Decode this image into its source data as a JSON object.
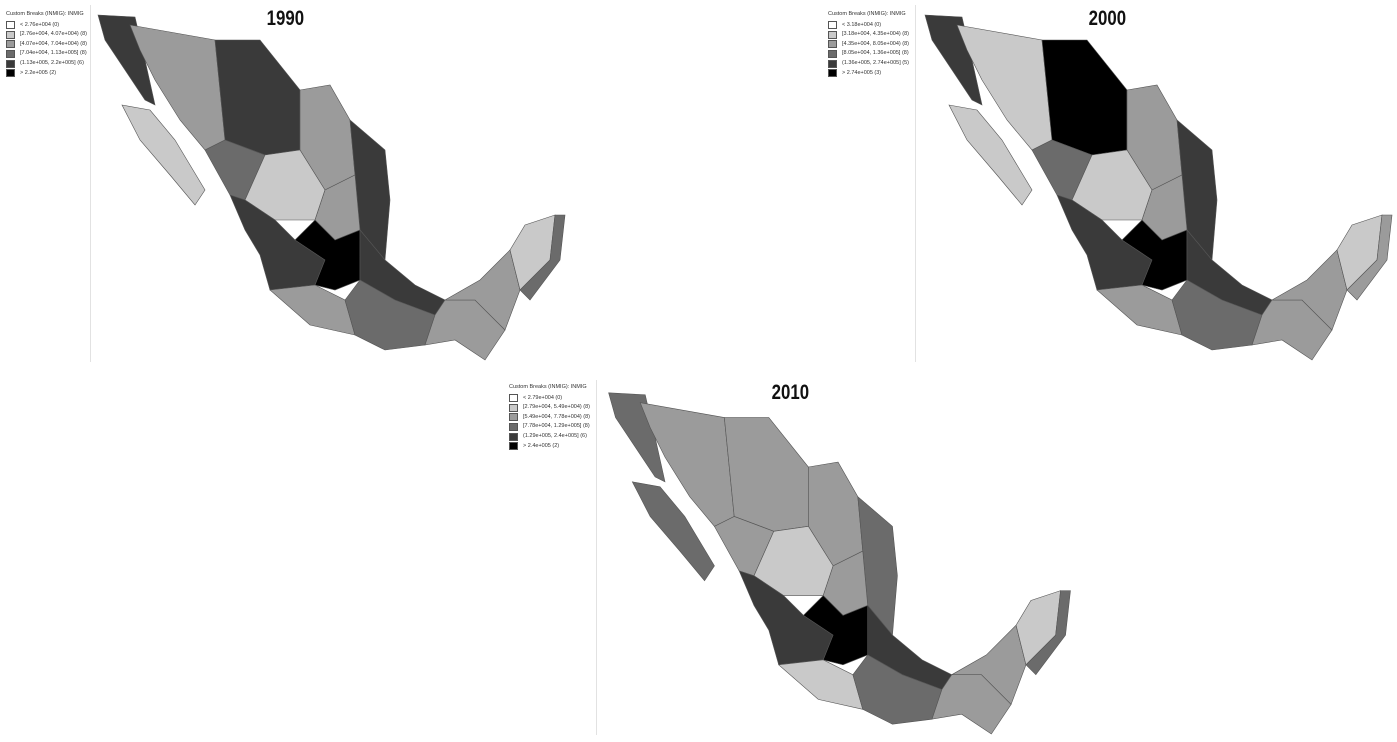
{
  "colors": {
    "class_fills": [
      "#ffffff",
      "#c9c9c9",
      "#9b9b9b",
      "#6b6b6b",
      "#3a3a3a",
      "#000000"
    ]
  },
  "panels": [
    {
      "year": "1990",
      "legend_title": "Custom Breaks (INMIG): INMIG",
      "legend": [
        "< 2.76e+004 (0)",
        "[2.76e+004, 4.07e+004) (8)",
        "[4.07e+004, 7.04e+004) (8)",
        "[7.04e+004, 1.13e+005] (8)",
        "(1.13e+005, 2.2e+005] (6)",
        "> 2.2e+005 (2)"
      ],
      "region_classes": [
        4,
        1,
        2,
        4,
        2,
        4,
        3,
        1,
        2,
        4,
        5,
        4,
        2,
        3,
        2,
        2,
        1,
        3
      ]
    },
    {
      "year": "2000",
      "legend_title": "Custom Breaks (INMIG): INMIG",
      "legend": [
        "< 3.18e+004 (0)",
        "[3.18e+004, 4.35e+004) (8)",
        "[4.35e+004, 8.05e+004) (8)",
        "[8.05e+004, 1.36e+005] (8)",
        "(1.36e+005, 2.74e+005] (5)",
        "> 2.74e+005 (3)"
      ],
      "region_classes": [
        4,
        1,
        1,
        5,
        2,
        4,
        3,
        1,
        2,
        4,
        5,
        4,
        2,
        3,
        2,
        2,
        1,
        2
      ]
    },
    {
      "year": "2010",
      "legend_title": "Custom Breaks (INMIG): INMIG",
      "legend": [
        "< 2.79e+004 (0)",
        "[2.79e+004, 5.49e+004) (8)",
        "[5.49e+004, 7.78e+004) (8)",
        "[7.78e+004, 1.29e+005] (8)",
        "(1.29e+005, 2.4e+005] (6)",
        "> 2.4e+005 (2)"
      ],
      "region_classes": [
        3,
        3,
        2,
        2,
        2,
        3,
        2,
        1,
        2,
        4,
        5,
        4,
        1,
        3,
        2,
        2,
        1,
        3
      ]
    }
  ]
}
